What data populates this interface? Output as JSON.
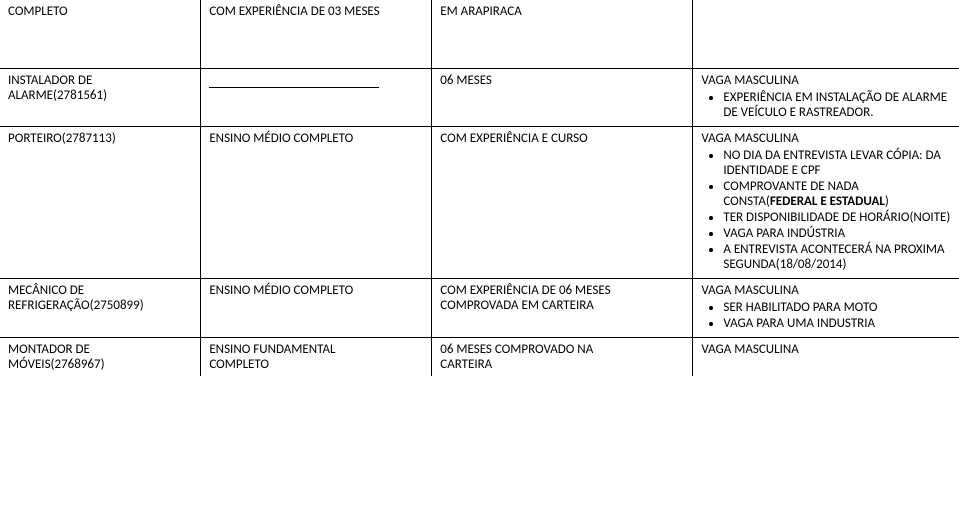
{
  "row1": {
    "c1": "COMPLETO",
    "c2": "COM EXPERIÊNCIA DE 03 MESES",
    "c3": "EM ARAPIRACA"
  },
  "row2": {
    "c1a": "INSTALADOR DE",
    "c1b": "ALARME(2781561)",
    "c3": "06 MESES",
    "c4": "VAGA MASCULINA",
    "bul1": "EXPERIÊNCIA EM INSTALAÇÃO DE ALARME DE VEÍCULO E RASTREADOR."
  },
  "row3": {
    "c1": "PORTEIRO(2787113)",
    "c2": "ENSINO MÉDIO COMPLETO",
    "c3": "COM EXPERIÊNCIA E CURSO",
    "c4": "VAGA MASCULINA",
    "bul1": "NO DIA DA ENTREVISTA LEVAR CÓPIA: DA IDENTIDADE  E CPF",
    "bul2a": "COMPROVANTE  DE   NADA CONSTA(",
    "bul2b": "FEDERAL  E   ESTADUAL",
    "bul2c": ")",
    "bul3": "TER DISPONIBILIDADE DE HORÁRIO(NOITE)",
    "bul4": "VAGA PARA INDÚSTRIA",
    "bul5": "A ENTREVISTA ACONTECERÁ NA PROXIMA SEGUNDA(18/08/2014)"
  },
  "row4": {
    "c1a": "MECÂNICO DE",
    "c1b": "REFRIGERAÇÃO(2750899)",
    "c2": "ENSINO MÉDIO COMPLETO",
    "c3a": "COM EXPERIÊNCIA  DE 06 MESES",
    "c3b": "COMPROVADA EM CARTEIRA",
    "c4": "VAGA MASCULINA",
    "bul1": "SER HABILITADO PARA MOTO",
    "bul2": "VAGA PARA  UMA INDUSTRIA"
  },
  "row5": {
    "c1a": "MONTADOR DE",
    "c1b": "MÓVEIS(2768967)",
    "c2a": "ENSINO FUNDAMENTAL",
    "c2b": "COMPLETO",
    "c3a": "06 MESES COMPROVADO  NA",
    "c3b": "CARTEIRA",
    "c4": "VAGA MASCULINA"
  }
}
